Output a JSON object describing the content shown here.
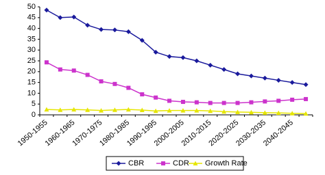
{
  "chart_data": {
    "type": "line",
    "categories": [
      "1950-1955",
      null,
      "1960-1965",
      null,
      "1970-1975",
      null,
      "1980-1985",
      null,
      "1990-1995",
      null,
      "2000-2005",
      null,
      "2010-2015",
      null,
      "2020-2025",
      null,
      "2030-2035",
      null,
      "2040-2045",
      null
    ],
    "series": [
      {
        "name": "CBR",
        "color": "#1a1a9c",
        "marker": "diamond",
        "values": [
          48.5,
          45,
          45.3,
          41.5,
          39.5,
          39.3,
          38.5,
          34.5,
          29,
          27,
          26.5,
          25,
          23,
          21,
          19,
          18,
          17,
          16,
          15,
          14
        ]
      },
      {
        "name": "CDR",
        "color": "#cc33cc",
        "marker": "square",
        "values": [
          24.3,
          21,
          20.5,
          18.5,
          15.5,
          14.3,
          12.5,
          9.5,
          8,
          6.5,
          6,
          5.8,
          5.5,
          5.5,
          5.5,
          5.8,
          6.2,
          6.5,
          7,
          7.3
        ]
      },
      {
        "name": "Growth Rate",
        "color": "#e6e600",
        "marker": "triangle",
        "values": [
          2.5,
          2.3,
          2.5,
          2.3,
          2.0,
          2.3,
          2.5,
          2.2,
          1.8,
          2.0,
          2.0,
          2.0,
          1.8,
          1.5,
          1.3,
          1.2,
          1.0,
          0.9,
          0.7,
          0.6
        ]
      }
    ],
    "ylim": [
      0,
      50
    ],
    "yticks": [
      0,
      5,
      10,
      15,
      20,
      25,
      30,
      35,
      40,
      45,
      50
    ],
    "grid": false,
    "legend": "bottom"
  }
}
